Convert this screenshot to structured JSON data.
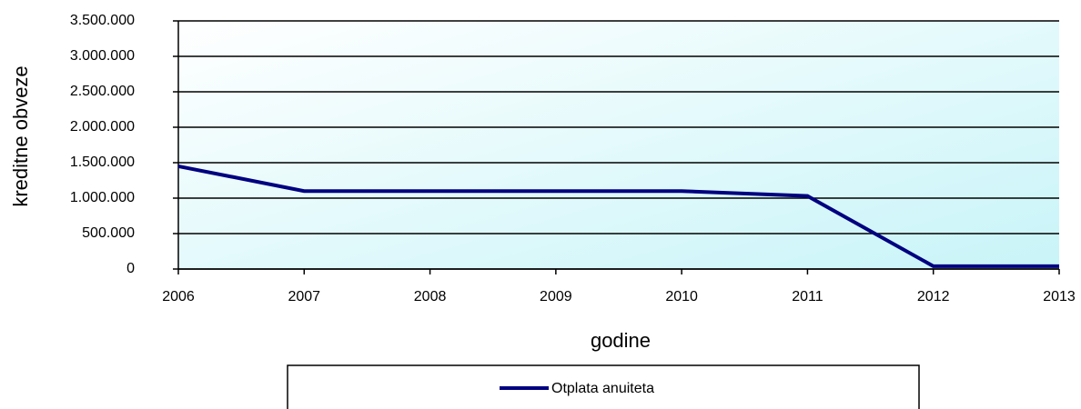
{
  "chart_data": {
    "type": "line",
    "x_label": "godine",
    "y_label": "kreditne obveze",
    "categories": [
      "2006",
      "2007",
      "2008",
      "2009",
      "2010",
      "2011",
      "2012",
      "2013"
    ],
    "series": [
      {
        "name": "Otplata anuiteta",
        "color": "#000080",
        "values": [
          1450000,
          1100000,
          1100000,
          1100000,
          1100000,
          1030000,
          40000,
          40000
        ]
      }
    ],
    "ylim": [
      0,
      3500000
    ],
    "yticks": [
      0,
      {
        "value": 500000,
        "label": "500.000"
      },
      {
        "value": 1000000,
        "label": "1.000.000"
      },
      {
        "value": 1500000,
        "label": "1.500.000"
      },
      {
        "value": 2000000,
        "label": "2.000.000"
      },
      {
        "value": 2500000,
        "label": "2.500.000"
      },
      {
        "value": 3000000,
        "label": "3.000.000"
      },
      {
        "value": 3500000,
        "label": "3.500.000"
      }
    ],
    "grid": true,
    "legend": "bottom"
  }
}
